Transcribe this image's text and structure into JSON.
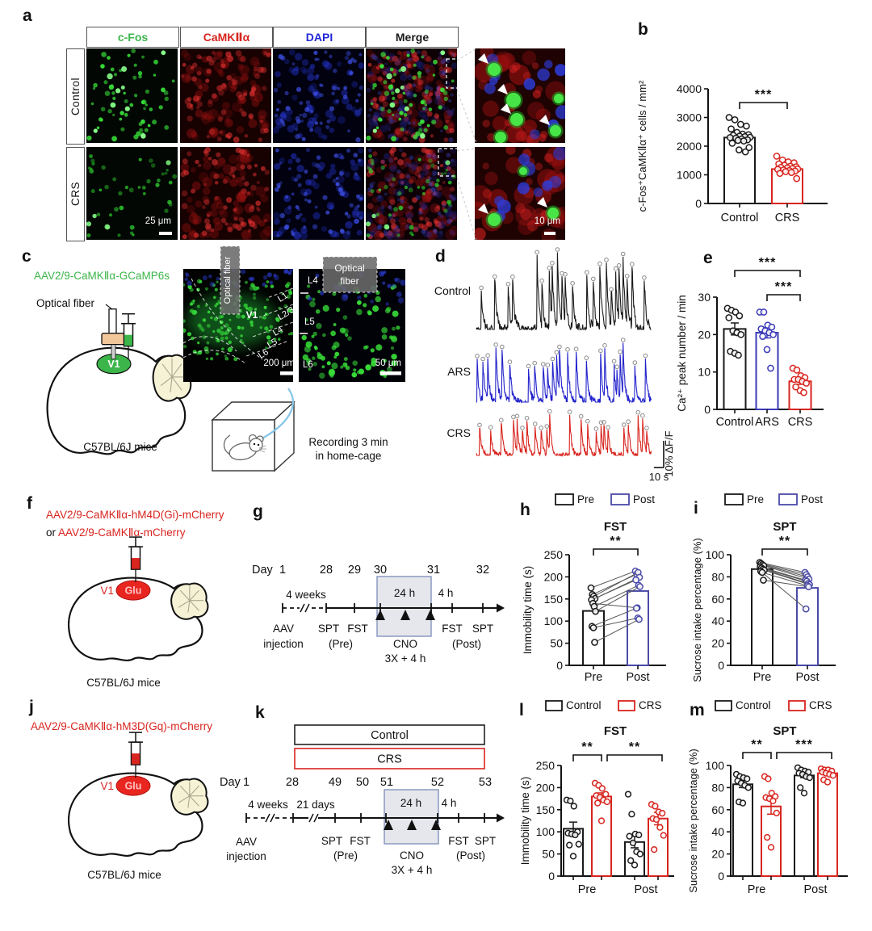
{
  "colors": {
    "green": "#3cb54a",
    "red": "#d8251f",
    "dapi_blue": "#2328d8",
    "ars_blue": "#3a3ab8",
    "post_blue": "#4a4aa8",
    "trace_blue": "#2222cc",
    "black": "#1a1a1a",
    "timeline_box_fill": "#e5e7ec",
    "timeline_box_border": "#8394bd"
  },
  "panel_a": {
    "label": "a",
    "columns": [
      {
        "label": "c-Fos",
        "color": "#3cb54a"
      },
      {
        "label": "CaMKⅡα",
        "color": "#d8251f"
      },
      {
        "label": "DAPI",
        "color": "#2328d8"
      },
      {
        "label": "Merge",
        "color": "#1a1a1a"
      }
    ],
    "rows": [
      "Control",
      "CRS"
    ],
    "scale_bar_main": "25 μm",
    "scale_bar_zoom": "10 μm"
  },
  "panel_c": {
    "label": "c",
    "virus": "AAV2/9-CaMKⅡα-GCaMP6s",
    "optical_fiber": "Optical fiber",
    "region": "V1",
    "mouse": "C57BL/6J mice",
    "img1": {
      "fiber_label": "Optical fiber",
      "region": "V1",
      "layers": [
        "L1",
        "L2/3",
        "L4",
        "L5",
        "L6"
      ],
      "scale": "200 μm"
    },
    "img2": {
      "fiber_label_1": "Optical",
      "fiber_label_2": "fiber",
      "layers": [
        "L4",
        "L5",
        "L6"
      ],
      "scale": "50 μm"
    },
    "recording_line1": "Recording 3 min",
    "recording_line2": "in home-cage"
  },
  "panel_f": {
    "label": "f",
    "virus_line1": "AAV2/9-CaMKⅡα-hM4D(Gi)-mCherry",
    "or": "or",
    "virus_line2": "AAV2/9-CaMKⅡα-mCherry",
    "region": "V1",
    "cell": "Glu",
    "mouse": "C57BL/6J mice"
  },
  "panel_g": {
    "label": "g",
    "day_prefix": "Day",
    "days": [
      "1",
      "28",
      "29",
      "30",
      "31",
      "32"
    ],
    "span1": "4 weeks",
    "box_label": "24 h",
    "after_box": "4 h",
    "events": {
      "aav1": "AAV",
      "aav2": "injection",
      "spt_pre": "SPT",
      "fst_pre": "FST",
      "pre": "(Pre)",
      "cno": "CNO",
      "cno2": "3X + 4 h",
      "fst_post": "FST",
      "spt_post": "SPT",
      "post": "(Post)"
    }
  },
  "panel_j": {
    "label": "j",
    "virus": "AAV2/9-CaMKⅡα-hM3D(Gq)-mCherry",
    "region": "V1",
    "cell": "Glu",
    "mouse": "C57BL/6J mice"
  },
  "panel_k": {
    "label": "k",
    "day_prefix": "Day",
    "group_boxes": [
      "Control",
      "CRS"
    ],
    "days": [
      "1",
      "28",
      "49",
      "50",
      "51",
      "52",
      "53"
    ],
    "span1": "4 weeks",
    "span2": "21 days",
    "box_label": "24 h",
    "after_box": "4 h",
    "events": {
      "aav1": "AAV",
      "aav2": "injection",
      "spt_pre": "SPT",
      "fst_pre": "FST",
      "pre": "(Pre)",
      "cno": "CNO",
      "cno2": "3X + 4 h",
      "fst_post": "FST",
      "spt_post": "SPT",
      "post": "(Post)"
    }
  },
  "chart_data": [
    {
      "panel": "b",
      "type": "bar-scatter",
      "ylabel": "c-Fos⁺CaMKⅡα⁺ cells / mm²",
      "ylim": [
        0,
        4000
      ],
      "yticks": [
        0,
        1000,
        2000,
        3000,
        4000
      ],
      "categories": [
        "Control",
        "CRS"
      ],
      "colors": [
        "#1a1a1a",
        "#d8251f"
      ],
      "means": [
        2300,
        1200
      ],
      "errors": [
        90,
        60
      ],
      "points": [
        [
          3000,
          2920,
          2760,
          2700,
          2600,
          2480,
          2420,
          2400,
          2380,
          2350,
          2330,
          2310,
          2300,
          2280,
          2250,
          2220,
          2200,
          2180,
          2100,
          1950,
          1870,
          1800
        ],
        [
          1650,
          1520,
          1450,
          1420,
          1380,
          1330,
          1300,
          1280,
          1260,
          1240,
          1220,
          1200,
          1190,
          1170,
          1150,
          1130,
          1110,
          1080,
          1050,
          870
        ]
      ],
      "sig": [
        {
          "a": 0,
          "b": 1,
          "label": "***"
        }
      ]
    },
    {
      "panel": "d",
      "type": "line-traces",
      "series": [
        {
          "name": "Control",
          "color": "#1a1a1a"
        },
        {
          "name": "ARS",
          "color": "#2222cc"
        },
        {
          "name": "CRS",
          "color": "#d8251f"
        }
      ],
      "y_scale_label": "10% ΔF/F",
      "x_scale_label": "10 s",
      "note": "representative spontaneous Ca2+ transients, detected peaks circled"
    },
    {
      "panel": "e",
      "type": "bar-scatter",
      "ylabel": "Ca²⁺ peak number / min",
      "ylim": [
        0,
        30
      ],
      "yticks": [
        0,
        10,
        20,
        30
      ],
      "categories": [
        "Control",
        "ARS",
        "CRS"
      ],
      "colors": [
        "#1a1a1a",
        "#3a3ab8",
        "#d8251f"
      ],
      "means": [
        21.5,
        20.5,
        7.5
      ],
      "errors": [
        1.6,
        1.4,
        0.8
      ],
      "points": [
        [
          27,
          26.5,
          26,
          25,
          24.5,
          21,
          20.5,
          20,
          15.5,
          15,
          14.5
        ],
        [
          26,
          26,
          22.5,
          22,
          21.5,
          21,
          20.5,
          20,
          19.5,
          16,
          11
        ],
        [
          11,
          10.5,
          9,
          8.5,
          8,
          8,
          7.5,
          7,
          6,
          5,
          4.5
        ]
      ],
      "sig": [
        {
          "a": 0,
          "b": 2,
          "label": "***"
        },
        {
          "a": 1,
          "b": 2,
          "label": "***"
        }
      ]
    },
    {
      "panel": "h",
      "type": "paired",
      "title": "FST",
      "legend": [
        "Pre",
        "Post"
      ],
      "legend_colors": [
        "#1a1a1a",
        "#4a4aa8"
      ],
      "ylabel": "Immobility time (s)",
      "ylim": [
        0,
        250
      ],
      "yticks": [
        0,
        50,
        100,
        150,
        200,
        250
      ],
      "categories": [
        "Pre",
        "Post"
      ],
      "bar_values": [
        123,
        168
      ],
      "pairs": [
        [
          175,
          213
        ],
        [
          160,
          206
        ],
        [
          156,
          210
        ],
        [
          151,
          199
        ],
        [
          148,
          193
        ],
        [
          140,
          130
        ],
        [
          133,
          181
        ],
        [
          122,
          178
        ],
        [
          88,
          129
        ],
        [
          85,
          107
        ],
        [
          52,
          104
        ]
      ],
      "sig": [
        {
          "a": 0,
          "b": 1,
          "label": "**"
        }
      ]
    },
    {
      "panel": "i",
      "type": "paired",
      "title": "SPT",
      "legend": [
        "Pre",
        "Post"
      ],
      "legend_colors": [
        "#1a1a1a",
        "#4a4aa8"
      ],
      "ylabel": "Sucrose intake percentage (%)",
      "ylim": [
        0,
        100
      ],
      "yticks": [
        0,
        20,
        40,
        60,
        80,
        100
      ],
      "categories": [
        "Pre",
        "Post"
      ],
      "bar_values": [
        87,
        70
      ],
      "pairs": [
        [
          93,
          84
        ],
        [
          92,
          82
        ],
        [
          91,
          80
        ],
        [
          90,
          78
        ],
        [
          89,
          77
        ],
        [
          88,
          76
        ],
        [
          87,
          74
        ],
        [
          86,
          73
        ],
        [
          85,
          51
        ],
        [
          84,
          72
        ],
        [
          77,
          71
        ]
      ],
      "sig": [
        {
          "a": 0,
          "b": 1,
          "label": "**"
        }
      ]
    },
    {
      "panel": "l",
      "type": "grouped",
      "title": "FST",
      "legend": [
        "Control",
        "CRS"
      ],
      "legend_colors": [
        "#1a1a1a",
        "#d8251f"
      ],
      "ylabel": "Immobility time (s)",
      "ylim": [
        0,
        250
      ],
      "yticks": [
        0,
        50,
        100,
        150,
        200,
        250
      ],
      "groups": [
        "Pre",
        "Post"
      ],
      "series": [
        {
          "name": "Control",
          "color": "#1a1a1a",
          "values": [
            107,
            77
          ],
          "errors": [
            15,
            13
          ],
          "points": [
            [
              172,
              170,
              158,
              100,
              97,
              95,
              93,
              72,
              70,
              45
            ],
            [
              185,
              140,
              95,
              93,
              90,
              75,
              55,
              50,
              35,
              25
            ]
          ]
        },
        {
          "name": "CRS",
          "color": "#d8251f",
          "values": [
            180,
            130
          ],
          "errors": [
            8,
            14
          ],
          "points": [
            [
              210,
              205,
              198,
              185,
              182,
              178,
              172,
              168,
              165,
              125
            ],
            [
              162,
              158,
              145,
              142,
              130,
              128,
              110,
              92,
              60
            ]
          ]
        }
      ],
      "sig": [
        {
          "a": 0,
          "b": 1,
          "label": "**"
        },
        {
          "a": 1,
          "b": 3,
          "label": "**",
          "dx1": 7,
          "dx2": 5
        }
      ]
    },
    {
      "panel": "m",
      "type": "grouped",
      "title": "SPT",
      "legend": [
        "Control",
        "CRS"
      ],
      "legend_colors": [
        "#1a1a1a",
        "#d8251f"
      ],
      "ylabel": "Sucrose intake percentage (%)",
      "ylim": [
        0,
        100
      ],
      "yticks": [
        0,
        20,
        40,
        60,
        80,
        100
      ],
      "groups": [
        "Pre",
        "Post"
      ],
      "series": [
        {
          "name": "Control",
          "color": "#1a1a1a",
          "values": [
            83,
            91
          ],
          "errors": [
            3,
            2
          ],
          "points": [
            [
              92,
              90,
              89,
              88,
              86,
              84,
              82,
              80,
              67,
              66
            ],
            [
              98,
              96,
              95,
              94,
              93,
              92,
              90,
              89,
              80,
              75
            ]
          ]
        },
        {
          "name": "CRS",
          "color": "#d8251f",
          "values": [
            63,
            93
          ],
          "errors": [
            7,
            2
          ],
          "points": [
            [
              90,
              88,
              75,
              72,
              71,
              70,
              68,
              57,
              35,
              26
            ],
            [
              97,
              96,
              96,
              95,
              94,
              93,
              92,
              91,
              87,
              85
            ]
          ]
        }
      ],
      "sig": [
        {
          "a": 0,
          "b": 1,
          "label": "**"
        },
        {
          "a": 1,
          "b": 3,
          "label": "***",
          "dx1": 7,
          "dx2": 5
        }
      ]
    }
  ]
}
